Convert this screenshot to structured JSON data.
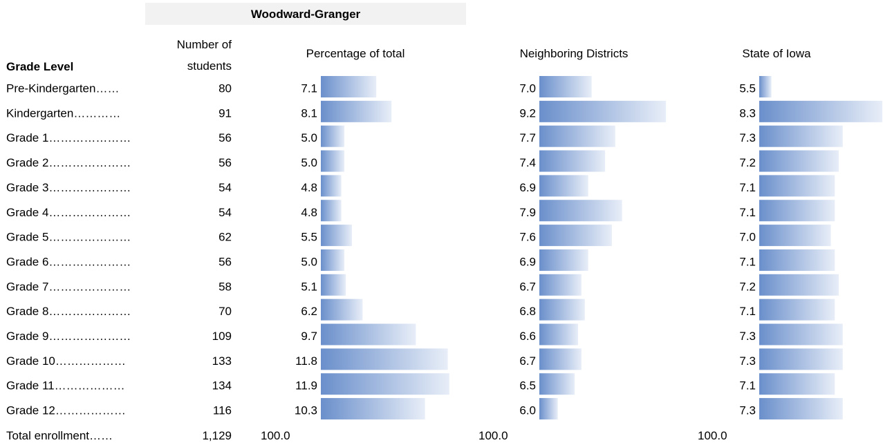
{
  "header": {
    "district": "Woodward-Granger"
  },
  "columns": {
    "grade_level": "Grade Level",
    "students_line1": "Number of",
    "students_line2": "students",
    "pct_total": "Percentage of total",
    "neighbors": "Neighboring Districts",
    "state": "State of Iowa"
  },
  "colors": {
    "header_bg": "#f2f2f2",
    "bar_start": "#6a8fcb",
    "bar_end": "#e8eef8"
  },
  "chart_data": {
    "type": "bar",
    "title": "Woodward-Granger",
    "categories": [
      "Pre-Kindergarten……",
      "Kindergarten…………",
      "Grade 1…………………",
      "Grade 2…………………",
      "Grade 3…………………",
      "Grade 4…………………",
      "Grade 5…………………",
      "Grade 6…………………",
      "Grade 7…………………",
      "Grade 8…………………",
      "Grade 9…………………",
      "Grade 10………………",
      "Grade 11………………",
      "Grade 12………………"
    ],
    "students": [
      "80",
      "91",
      "56",
      "56",
      "54",
      "54",
      "62",
      "56",
      "58",
      "70",
      "109",
      "133",
      "134",
      "116"
    ],
    "series": [
      {
        "name": "Percentage of total",
        "values": [
          7.1,
          8.1,
          5.0,
          5.0,
          4.8,
          4.8,
          5.5,
          5.0,
          5.1,
          6.2,
          9.7,
          11.8,
          11.9,
          10.3
        ],
        "labels": [
          "7.1",
          "8.1",
          "5.0",
          "5.0",
          "4.8",
          "4.8",
          "5.5",
          "5.0",
          "5.1",
          "6.2",
          "9.7",
          "11.8",
          "11.9",
          "10.3"
        ],
        "scale_min": 4.0,
        "scale_max": 12.0
      },
      {
        "name": "Neighboring Districts",
        "values": [
          7.0,
          9.2,
          7.7,
          7.4,
          6.9,
          7.9,
          7.6,
          6.9,
          6.7,
          6.8,
          6.6,
          6.7,
          6.5,
          6.0
        ],
        "labels": [
          "7.0",
          "9.2",
          "7.7",
          "7.4",
          "6.9",
          "7.9",
          "7.6",
          "6.9",
          "6.7",
          "6.8",
          "6.6",
          "6.7",
          "6.5",
          "6.0"
        ],
        "scale_min": 5.7,
        "scale_max": 9.3
      },
      {
        "name": "State of Iowa",
        "values": [
          5.5,
          8.3,
          7.3,
          7.2,
          7.1,
          7.1,
          7.0,
          7.1,
          7.2,
          7.1,
          7.3,
          7.3,
          7.1,
          7.3
        ],
        "labels": [
          "5.5",
          "8.3",
          "7.3",
          "7.2",
          "7.1",
          "7.1",
          "7.0",
          "7.1",
          "7.2",
          "7.1",
          "7.3",
          "7.3",
          "7.1",
          "7.3"
        ],
        "scale_min": 5.4,
        "scale_max": 8.3
      }
    ],
    "total": {
      "label": "Total enrollment……",
      "students": "1,129",
      "pct_total": "100.0",
      "neighbors": "100.0",
      "state": "100.0"
    }
  }
}
